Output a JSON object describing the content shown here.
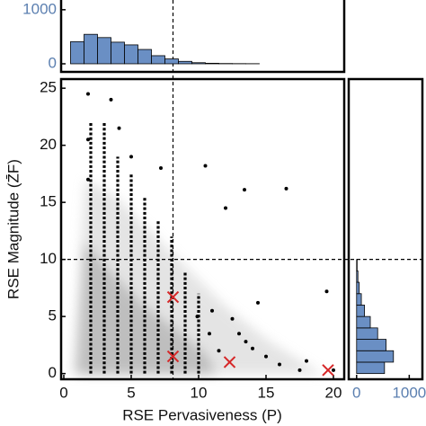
{
  "chart_data": [
    {
      "type": "scatter",
      "xlabel": "RSE Pervasiveness (P)",
      "ylabel": "RSE Magnitude (Z̄F)",
      "xlim": [
        -0.2,
        20.8
      ],
      "ylim": [
        -0.5,
        25.8
      ],
      "xticks": [
        0,
        5,
        10,
        15,
        20
      ],
      "yticks": [
        0,
        5,
        10,
        15,
        20,
        25
      ],
      "color": "#000000",
      "x": [
        1.8,
        1.8,
        1.8,
        3.5,
        4.1,
        5,
        7.2,
        10.5,
        12,
        13.4,
        14.4,
        16.5,
        9.9,
        11,
        12.5,
        13,
        13.5,
        14,
        15,
        16,
        17.5,
        18,
        19.5,
        20,
        10.8,
        11.5
      ],
      "y": [
        24.5,
        20.5,
        17,
        24,
        21.5,
        19,
        18,
        18.2,
        14.5,
        16.1,
        6.2,
        16.2,
        5,
        5.5,
        4.8,
        3.5,
        2.8,
        2.2,
        1.5,
        0.8,
        0.3,
        1.1,
        7.2,
        0.3,
        3.5,
        2
      ],
      "columns": {
        "x": [
          2,
          3,
          4,
          5,
          6,
          7,
          8,
          9,
          10
        ],
        "ymax": [
          22,
          22,
          19,
          17.5,
          15.5,
          13.5,
          12,
          9,
          7
        ]
      },
      "markers": {
        "x": [
          8.1,
          8.1,
          12.3,
          19.6
        ],
        "y": [
          6.7,
          1.5,
          1,
          0.3
        ],
        "color": "#d62728",
        "shape": "x"
      },
      "vline": 8.1,
      "hline": 10
    },
    {
      "type": "histogram",
      "bins": [
        0.5,
        1.5,
        2.5,
        3.5,
        4.5,
        5.5,
        6.5,
        7.5,
        8.5,
        9.5,
        10.5,
        11.5,
        12.5,
        13.5,
        14.5
      ],
      "values": [
        410,
        545,
        485,
        400,
        350,
        265,
        150,
        90,
        45,
        20,
        10,
        5,
        3,
        2
      ],
      "ylim": [
        -150,
        1180
      ],
      "yticks": [
        0,
        1000
      ],
      "color": "#6a8fc4",
      "tick_color": "#5b7fb0"
    },
    {
      "type": "histogram",
      "orientation": "horizontal",
      "bins": [
        0,
        1,
        2,
        3,
        4,
        5,
        6,
        7,
        8,
        9,
        10
      ],
      "values": [
        530,
        700,
        560,
        400,
        260,
        150,
        90,
        50,
        25,
        10
      ],
      "xlim": [
        -150,
        1250
      ],
      "xticks": [
        0,
        1000
      ],
      "color": "#6a8fc4",
      "tick_color": "#5b7fb0"
    }
  ]
}
